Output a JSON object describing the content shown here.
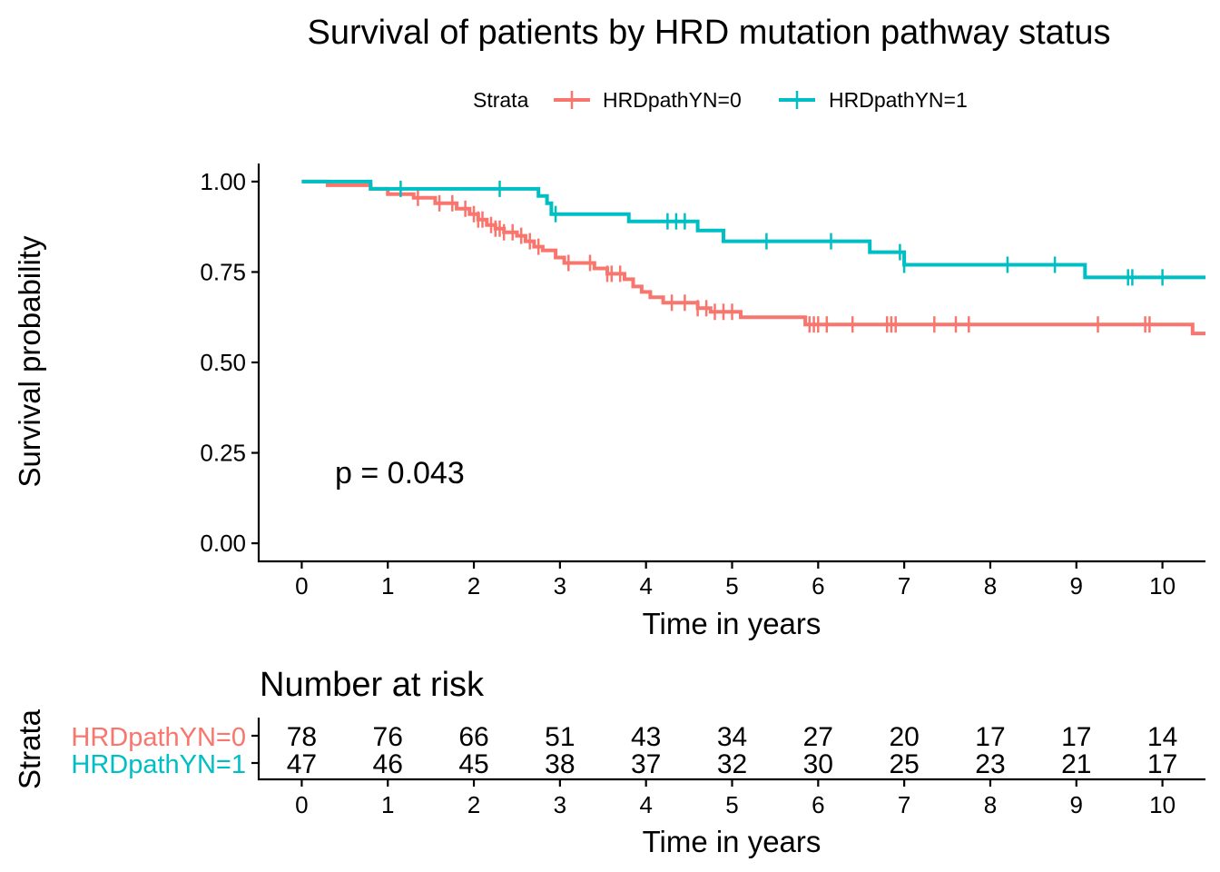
{
  "chart_data": [
    {
      "type": "line",
      "subtype": "kaplan-meier",
      "title": "Survival of patients by HRD mutation pathway status",
      "xlabel": "Time in years",
      "ylabel": "Survival probability",
      "xlim": [
        -0.5,
        10.5
      ],
      "ylim": [
        -0.05,
        1.05
      ],
      "xticks": [
        0,
        1,
        2,
        3,
        4,
        5,
        6,
        7,
        8,
        9,
        10
      ],
      "yticks": [
        0,
        0.25,
        0.5,
        0.75,
        1.0
      ],
      "ytick_labels": [
        "0.00",
        "0.25",
        "0.50",
        "0.75",
        "1.00"
      ],
      "legend": {
        "title": "Strata",
        "position": "top"
      },
      "annotation": "p = 0.043",
      "grid": false,
      "series": [
        {
          "name": "HRDpathYN=0",
          "color": "#F8766D",
          "step_x": [
            0,
            0.3,
            0.8,
            1.0,
            1.3,
            1.55,
            1.8,
            1.95,
            2.05,
            2.15,
            2.25,
            2.35,
            2.5,
            2.6,
            2.7,
            2.8,
            2.95,
            3.05,
            3.4,
            3.55,
            3.75,
            3.85,
            3.95,
            4.05,
            4.2,
            4.6,
            4.75,
            5.1,
            5.85,
            10.35
          ],
          "step_y": [
            1.0,
            0.99,
            0.98,
            0.965,
            0.955,
            0.94,
            0.925,
            0.91,
            0.895,
            0.88,
            0.87,
            0.86,
            0.85,
            0.835,
            0.82,
            0.81,
            0.79,
            0.775,
            0.76,
            0.745,
            0.73,
            0.71,
            0.695,
            0.68,
            0.665,
            0.65,
            0.64,
            0.625,
            0.605,
            0.58
          ],
          "x_end": 10.5,
          "censor_x": [
            1.35,
            1.6,
            1.75,
            1.9,
            2.0,
            2.05,
            2.1,
            2.2,
            2.25,
            2.3,
            2.35,
            2.45,
            2.55,
            2.65,
            2.75,
            3.1,
            3.35,
            3.55,
            3.6,
            3.7,
            4.3,
            4.45,
            4.6,
            4.7,
            4.8,
            4.9,
            5.0,
            5.9,
            5.95,
            6.0,
            6.1,
            6.4,
            6.8,
            6.85,
            6.9,
            7.35,
            7.6,
            7.75,
            9.25,
            9.8,
            9.85
          ]
        },
        {
          "name": "HRDpathYN=1",
          "color": "#00BFC4",
          "step_x": [
            0,
            0.8,
            2.75,
            2.85,
            2.9,
            3.8,
            4.6,
            4.9,
            6.6,
            7.0,
            9.1
          ],
          "step_y": [
            1.0,
            0.98,
            0.96,
            0.94,
            0.91,
            0.89,
            0.865,
            0.835,
            0.805,
            0.77,
            0.735
          ],
          "x_end": 10.5,
          "censor_x": [
            1.15,
            2.3,
            2.95,
            4.25,
            4.35,
            4.45,
            5.4,
            6.15,
            6.95,
            7.0,
            8.2,
            8.75,
            9.6,
            9.65,
            10.0
          ]
        }
      ]
    },
    {
      "type": "table",
      "title": "Number at risk",
      "xlabel": "Time in years",
      "ylabel": "Strata",
      "xticks": [
        0,
        1,
        2,
        3,
        4,
        5,
        6,
        7,
        8,
        9,
        10
      ],
      "rows": [
        {
          "name": "HRDpathYN=0",
          "color": "#F8766D",
          "values": [
            78,
            76,
            66,
            51,
            43,
            34,
            27,
            20,
            17,
            17,
            14
          ]
        },
        {
          "name": "HRDpathYN=1",
          "color": "#00BFC4",
          "values": [
            47,
            46,
            45,
            38,
            37,
            32,
            30,
            25,
            23,
            21,
            17
          ]
        }
      ]
    }
  ]
}
